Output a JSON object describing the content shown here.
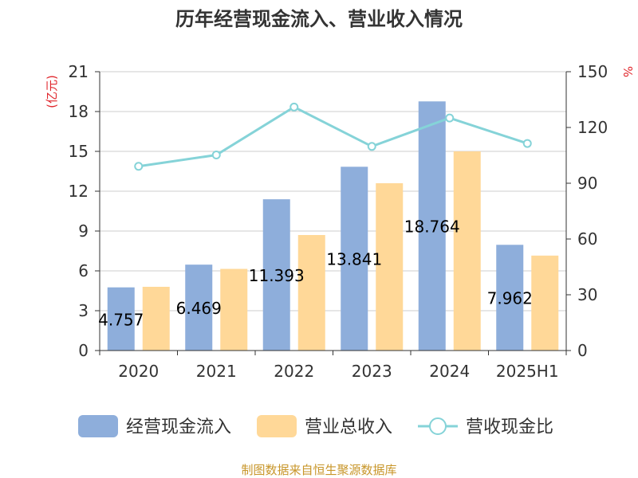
{
  "chart_data": {
    "type": "bar",
    "title": "历年经营现金流入、营业收入情况",
    "categories": [
      "2020",
      "2021",
      "2022",
      "2023",
      "2024",
      "2025H1"
    ],
    "y_left": {
      "unit": "(亿元)",
      "ylim": [
        0,
        21
      ],
      "ticks": [
        0,
        3,
        6,
        9,
        12,
        15,
        18,
        21
      ]
    },
    "y_right": {
      "unit": "%",
      "ylim": [
        0,
        150
      ],
      "ticks": [
        0,
        30,
        60,
        90,
        120,
        150
      ]
    },
    "series": [
      {
        "name": "经营现金流入",
        "type": "bar",
        "axis": "left",
        "color": "#8eaedb",
        "values": [
          4.757,
          6.469,
          11.393,
          13.841,
          18.764,
          7.962
        ],
        "labels": [
          "4.757",
          "6.469",
          "11.393",
          "13.841",
          "18.764",
          "7.962"
        ]
      },
      {
        "name": "营业总收入",
        "type": "bar",
        "axis": "left",
        "color": "#ffd898",
        "values": [
          4.8,
          6.15,
          8.7,
          12.6,
          15.0,
          7.15
        ]
      },
      {
        "name": "营收现金比",
        "type": "line",
        "axis": "right",
        "color": "#85d3d8",
        "values": [
          99.1,
          105.2,
          131.0,
          109.8,
          125.1,
          111.4
        ]
      }
    ],
    "grid": true,
    "legend_position": "bottom",
    "source": "制图数据来自恒生聚源数据库"
  }
}
